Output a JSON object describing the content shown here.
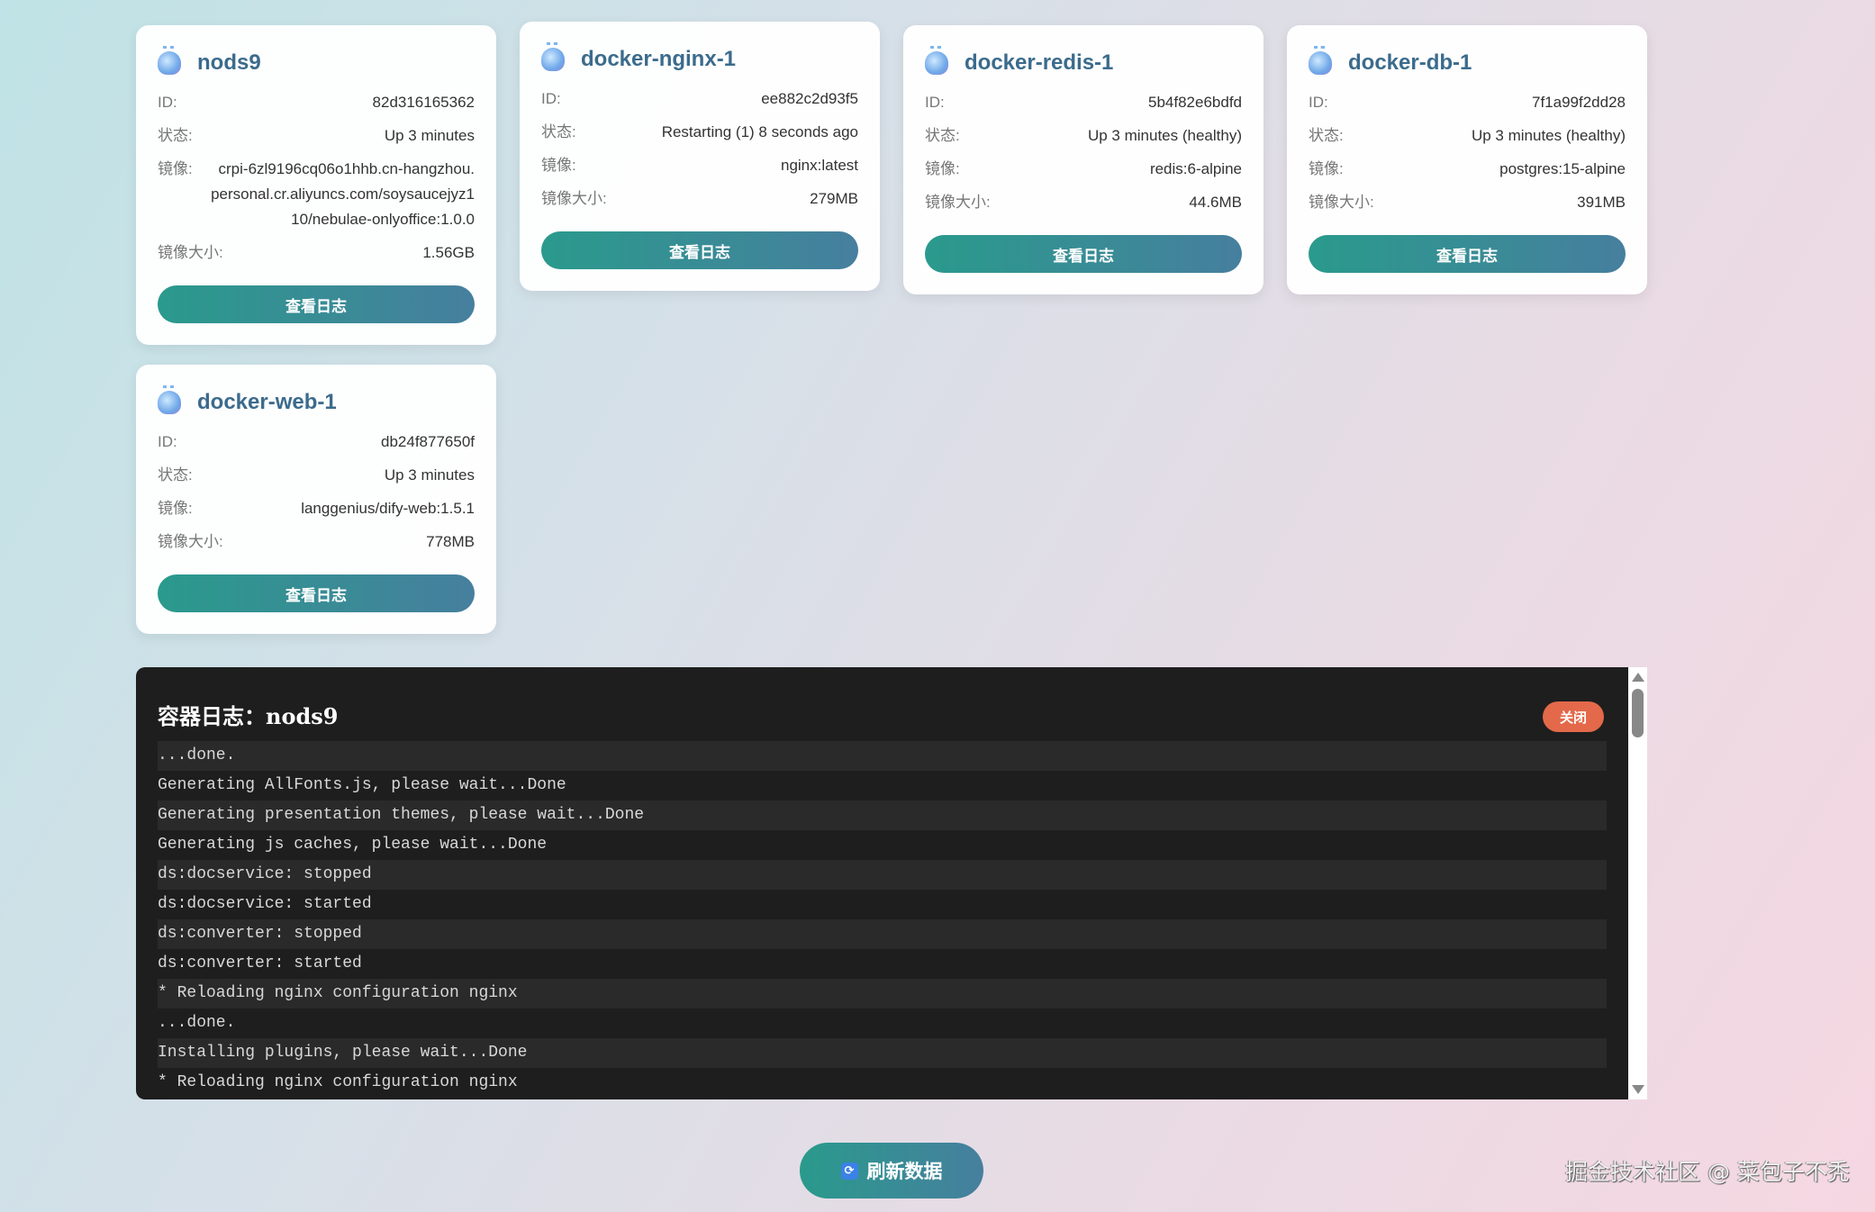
{
  "labels": {
    "id": "ID:",
    "status": "状态:",
    "image": "镜像:",
    "size": "镜像大小:",
    "view_logs": "查看日志"
  },
  "containers": [
    {
      "name": "nods9",
      "id": "82d316165362",
      "status": "Up 3 minutes",
      "image": "crpi-6zl9196cq06o1hhb.cn-hangzhou.personal.cr.aliyuncs.com/soysaucejyz110/nebulae-onlyoffice:1.0.0",
      "size": "1.56GB"
    },
    {
      "name": "docker-nginx-1",
      "id": "ee882c2d93f5",
      "status": "Restarting (1) 8 seconds ago",
      "image": "nginx:latest",
      "size": "279MB"
    },
    {
      "name": "docker-redis-1",
      "id": "5b4f82e6bdfd",
      "status": "Up 3 minutes (healthy)",
      "image": "redis:6-alpine",
      "size": "44.6MB"
    },
    {
      "name": "docker-db-1",
      "id": "7f1a99f2dd28",
      "status": "Up 3 minutes (healthy)",
      "image": "postgres:15-alpine",
      "size": "391MB"
    },
    {
      "name": "docker-web-1",
      "id": "db24f877650f",
      "status": "Up 3 minutes",
      "image": "langgenius/dify-web:1.5.1",
      "size": "778MB"
    }
  ],
  "log_panel": {
    "title": "容器日志：nods9",
    "close_label": "关闭",
    "lines": [
      "...done.",
      "Generating AllFonts.js, please wait...Done",
      "Generating presentation themes, please wait...Done",
      "Generating js caches, please wait...Done",
      "ds:docservice: stopped",
      "ds:docservice: started",
      "ds:converter: stopped",
      "ds:converter: started",
      "* Reloading nginx configuration nginx",
      "...done.",
      "Installing plugins, please wait...Done",
      "* Reloading nginx configuration nginx"
    ]
  },
  "refresh_label": "刷新数据",
  "watermark": "掘金技术社区 @ 菜包子不秃",
  "colors": {
    "accent_start": "#2a9a8c",
    "accent_end": "#467f9e",
    "close": "#e3694a",
    "log_bg": "#1e1e1e"
  }
}
